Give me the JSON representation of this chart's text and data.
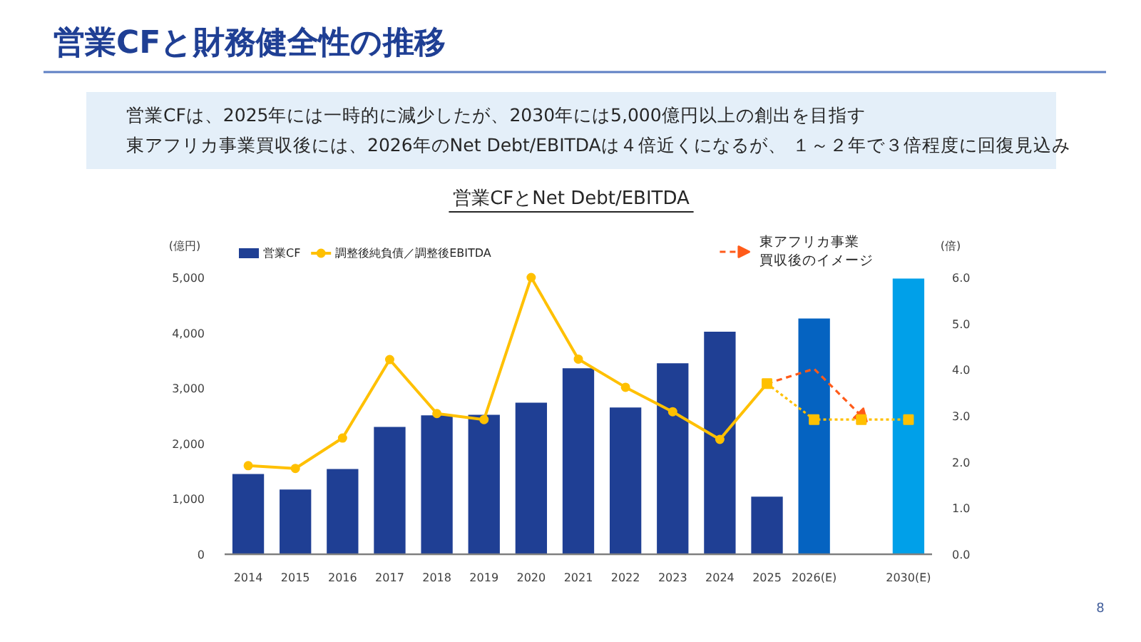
{
  "chart_data": {
    "type": "bar",
    "title": "営業CFと財務健全性の推移",
    "subtitle": "営業CFとNet Debt/EBITDA",
    "annotations": [
      "営業CFは、2025年には一時的に減少したが、2030年には5,000億円以上の創出を目指す",
      "東アフリカ事業買収後には、2026年のNet Debt/EBITDAは４倍近くになるが、 １～２年で３倍程度に回復見込み",
      "8"
    ],
    "categories": [
      "2014",
      "2015",
      "2016",
      "2017",
      "2018",
      "2019",
      "2020",
      "2021",
      "2022",
      "2023",
      "2024",
      "2025",
      "2026(E)",
      null,
      "2030(E)"
    ],
    "ylabel": "(億円)",
    "y2label": "(倍)",
    "ylim": [
      0,
      5000
    ],
    "yticks": [
      0,
      {
        "value": 1000,
        "label": "1,000"
      },
      {
        "value": 2000,
        "label": "2,000"
      },
      {
        "value": 3000,
        "label": "3,000"
      },
      {
        "value": 4000,
        "label": "4,000"
      },
      {
        "value": 5000,
        "label": "5,000"
      }
    ],
    "y2lim": [
      0,
      6
    ],
    "y2ticks": [
      {
        "value": 0,
        "label": "0.0"
      },
      {
        "value": 1,
        "label": "1.0"
      },
      {
        "value": 2,
        "label": "2.0"
      },
      {
        "value": 3,
        "label": "3.0"
      },
      {
        "value": 4,
        "label": "4.0"
      },
      {
        "value": 5,
        "label": "5.0"
      },
      {
        "value": 6,
        "label": "6.0"
      }
    ],
    "grid": false,
    "legend": "top left",
    "series": [
      {
        "name": "営業CF",
        "color": "#1f3f94",
        "colors": [
          "#1f3f94",
          "#1f3f94",
          "#1f3f94",
          "#1f3f94",
          "#1f3f94",
          "#1f3f94",
          "#1f3f94",
          "#1f3f94",
          "#1f3f94",
          "#1f3f94",
          "#1f3f94",
          "#1f3f94",
          "#0563c1",
          null,
          "#00a0e9"
        ],
        "values": [
          1450,
          1170,
          1540,
          2300,
          2510,
          2520,
          2740,
          3360,
          2650,
          3450,
          4020,
          1040,
          4260,
          null,
          4980
        ]
      },
      {
        "type": "line",
        "name": "調整後純負債／調整後EBITDA",
        "color": "#ffc000",
        "axis": "y2",
        "marker": "circle",
        "line_style": "solid",
        "values": [
          1.92,
          1.86,
          2.52,
          4.22,
          3.05,
          2.92,
          6.0,
          4.23,
          3.62,
          3.09,
          2.49,
          3.7,
          null,
          null,
          null
        ]
      },
      {
        "type": "line",
        "name": "東アフリカ事業買収後のイメージ",
        "color": "#ff5b1a",
        "axis": "y2",
        "marker": "none",
        "line_style": "dashed",
        "values": [
          null,
          null,
          null,
          null,
          null,
          null,
          null,
          null,
          null,
          null,
          null,
          3.7,
          4.02,
          3.0,
          null
        ]
      },
      {
        "type": "line",
        "color": "#ffc000",
        "axis": "y2",
        "marker": "square",
        "line_style": "dotted",
        "values": [
          null,
          null,
          null,
          null,
          null,
          null,
          null,
          null,
          null,
          null,
          null,
          3.7,
          2.92,
          2.92,
          2.92
        ]
      }
    ]
  }
}
